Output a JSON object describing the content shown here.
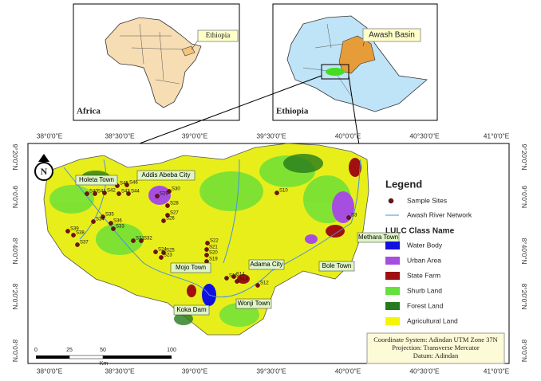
{
  "insets": {
    "africa": {
      "title": "Africa",
      "callout": "Ethiopia"
    },
    "ethiopia": {
      "title": "Ethiopia",
      "callout": "Awash Basin"
    }
  },
  "map": {
    "longitude_labels": [
      "38°0'0\"E",
      "38°30'0\"E",
      "39°0'0\"E",
      "39°30'0\"E",
      "40°0'0\"E",
      "40°30'0\"E",
      "41°0'0\"E"
    ],
    "latitude_labels": [
      "9°20'0\"N",
      "9°0'0\"N",
      "8°40'0\"N",
      "8°20'0\"N",
      "8°0'0\"N"
    ],
    "north": "N",
    "towns": [
      "Holeta Town",
      "Addis Abeba City",
      "Mojo Town",
      "Adama City",
      "Koka Dam",
      "Wonji Town",
      "Bole Town",
      "Methara Town"
    ],
    "sites": [
      "S45",
      "S46",
      "S40",
      "S41",
      "S42",
      "S43",
      "S44",
      "S35",
      "S36",
      "S34",
      "S33",
      "S39",
      "S38",
      "S37",
      "S31",
      "S32",
      "S24",
      "S25",
      "S23",
      "S22",
      "S21",
      "S20",
      "S19",
      "S27",
      "S28",
      "S26",
      "S29",
      "S30",
      "S10",
      "S15",
      "S14",
      "S13",
      "S12",
      "S3"
    ],
    "scale_bar": {
      "ticks": [
        "0",
        "25",
        "50",
        "100"
      ],
      "unit": "Km"
    }
  },
  "legend": {
    "title": "Legend",
    "symbols": [
      "Sample Sites",
      "Awash River Network"
    ],
    "class_title": "LULC Class Name",
    "classes": [
      {
        "name": "Water Body",
        "color": "#1010e0"
      },
      {
        "name": "Urban Area",
        "color": "#a64ee0"
      },
      {
        "name": "State Farm",
        "color": "#a01010"
      },
      {
        "name": "Shurb Land",
        "color": "#66e03a"
      },
      {
        "name": "Forest Land",
        "color": "#247a1c"
      },
      {
        "name": "Agricultural Land",
        "color": "#f5f500"
      }
    ]
  },
  "info": {
    "lines": [
      "Coordinate System: Adindan UTM Zone 37N",
      "Projection: Transverse Mercator",
      "Datum: Adindan"
    ]
  }
}
